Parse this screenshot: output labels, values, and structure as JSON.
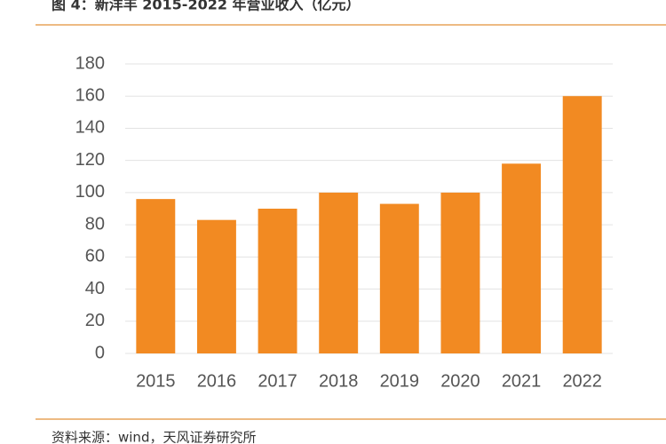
{
  "chart_data": {
    "type": "bar",
    "title": "图 4：新洋丰 2015-2022 年营业收入（亿元）",
    "categories": [
      "2015",
      "2016",
      "2017",
      "2018",
      "2019",
      "2020",
      "2021",
      "2022"
    ],
    "values": [
      96,
      83,
      90,
      100,
      93,
      100,
      118,
      160
    ],
    "color": "#f28a22",
    "ylim": [
      0,
      180
    ],
    "yticks": [
      0,
      20,
      40,
      60,
      80,
      100,
      120,
      140,
      160,
      180
    ],
    "grid": true,
    "source": "资料来源：wind，天风证券研究所"
  }
}
